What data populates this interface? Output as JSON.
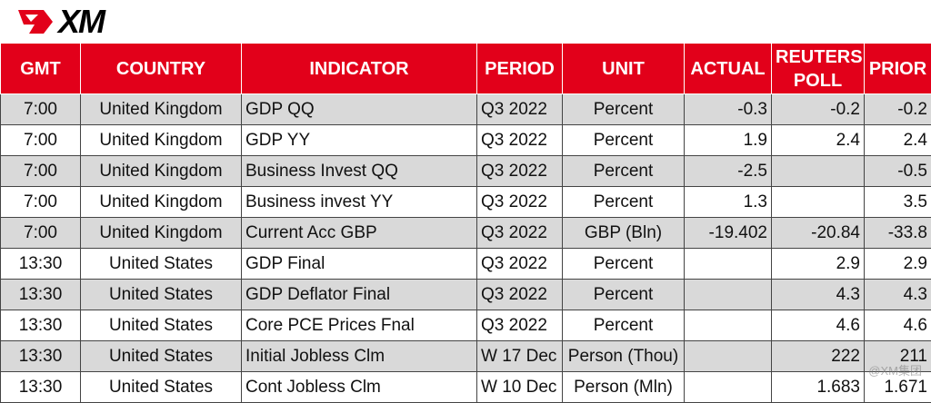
{
  "logo": "XM",
  "table": {
    "header": [
      "GMT",
      "COUNTRY",
      "INDICATOR",
      "PERIOD",
      "UNIT",
      "ACTUAL",
      "REUTERS POLL",
      "PRIOR"
    ],
    "rows": [
      [
        "7:00",
        "United Kingdom",
        "GDP QQ",
        "Q3 2022",
        "Percent",
        "-0.3",
        "-0.2",
        "-0.2"
      ],
      [
        "7:00",
        "United Kingdom",
        "GDP YY",
        "Q3 2022",
        "Percent",
        "1.9",
        "2.4",
        "2.4"
      ],
      [
        "7:00",
        "United Kingdom",
        "Business Invest QQ",
        "Q3 2022",
        "Percent",
        "-2.5",
        null,
        "-0.5"
      ],
      [
        "7:00",
        "United Kingdom",
        "Business invest YY",
        "Q3 2022",
        "Percent",
        "1.3",
        null,
        "3.5"
      ],
      [
        "7:00",
        "United Kingdom",
        "Current Acc GBP",
        "Q3 2022",
        "GBP (Bln)",
        "-19.402",
        "-20.84",
        "-33.8"
      ],
      [
        "13:30",
        "United States",
        "GDP Final",
        "Q3 2022",
        "Percent",
        null,
        "2.9",
        "2.9"
      ],
      [
        "13:30",
        "United States",
        "GDP Deflator Final",
        "Q3 2022",
        "Percent",
        null,
        "4.3",
        "4.3"
      ],
      [
        "13:30",
        "United States",
        "Core PCE Prices Fnal",
        "Q3 2022",
        "Percent",
        null,
        "4.6",
        "4.6"
      ],
      [
        "13:30",
        "United States",
        "Initial Jobless Clm",
        "W 17 Dec",
        "Person (Thou)",
        null,
        "222",
        "211"
      ],
      [
        "13:30",
        "United States",
        "Cont Jobless Clm",
        "W 10 Dec",
        "Person (Mln)",
        null,
        "1.683",
        "1.671"
      ]
    ]
  },
  "watermark": "@XM集团"
}
